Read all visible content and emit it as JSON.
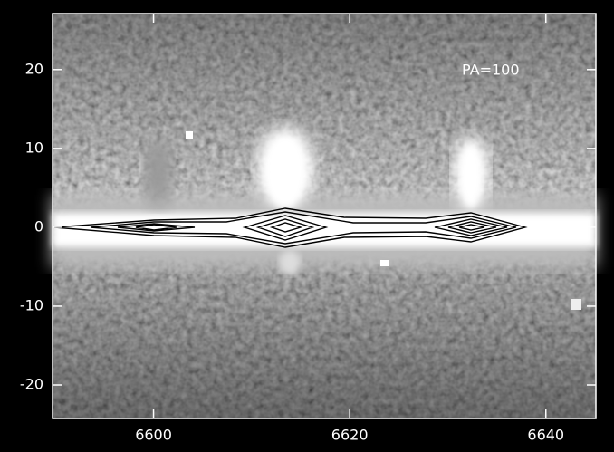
{
  "chart_data": {
    "type": "image",
    "annotation": "PA=100",
    "xlim": [
      6589.7,
      6645.1
    ],
    "xticks": [
      6600,
      6620,
      6640
    ],
    "ylim": [
      -24.25,
      27.1
    ],
    "yticks": [
      -20,
      -10,
      0,
      10,
      20
    ]
  }
}
